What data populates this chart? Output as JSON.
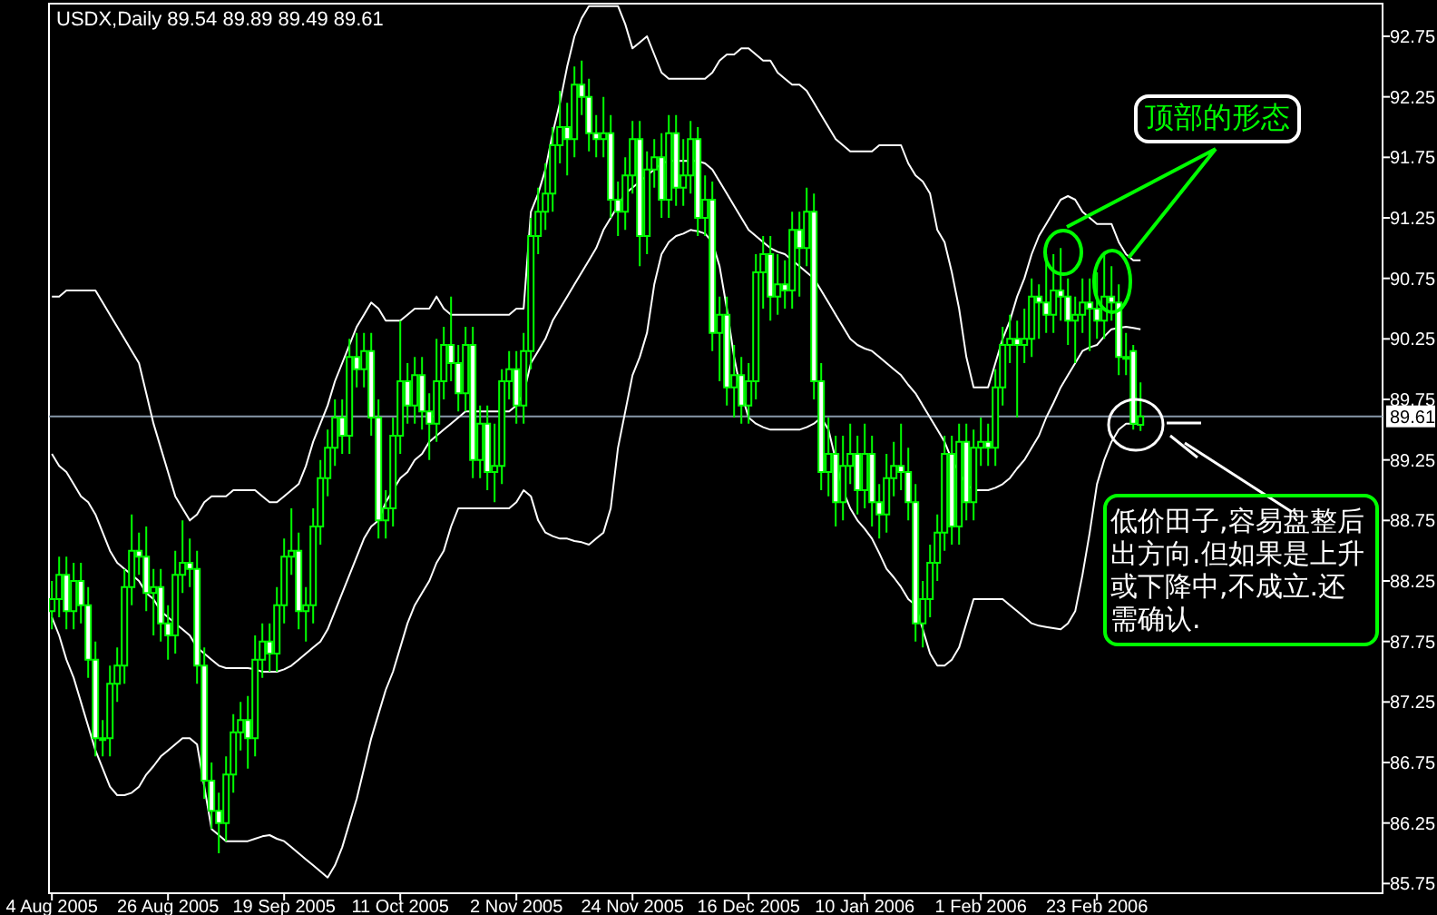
{
  "chart_data": {
    "type": "candlestick",
    "title": "USDX,Daily  89.54 89.89 89.49 89.61",
    "categories": [
      "4 Aug 2005",
      null,
      null,
      null,
      null,
      null,
      null,
      null,
      null,
      null,
      null,
      null,
      null,
      null,
      null,
      null,
      "26 Aug 2005",
      null,
      null,
      null,
      null,
      null,
      null,
      null,
      null,
      null,
      null,
      null,
      null,
      null,
      null,
      null,
      "19 Sep 2005",
      null,
      null,
      null,
      null,
      null,
      null,
      null,
      null,
      null,
      null,
      null,
      null,
      null,
      null,
      null,
      "11 Oct 2005",
      null,
      null,
      null,
      null,
      null,
      null,
      null,
      null,
      null,
      null,
      null,
      null,
      null,
      null,
      null,
      "2 Nov 2005",
      null,
      null,
      null,
      null,
      null,
      null,
      null,
      null,
      null,
      null,
      null,
      null,
      null,
      null,
      null,
      "24 Nov 2005",
      null,
      null,
      null,
      null,
      null,
      null,
      null,
      null,
      null,
      null,
      null,
      null,
      null,
      null,
      null,
      "16 Dec 2005",
      null,
      null,
      null,
      null,
      null,
      null,
      null,
      null,
      null,
      null,
      null,
      null,
      null,
      null,
      null,
      "10 Jan 2006",
      null,
      null,
      null,
      null,
      null,
      null,
      null,
      null,
      null,
      null,
      null,
      null,
      null,
      null,
      null,
      "1 Feb 2006",
      null,
      null,
      null,
      null,
      null,
      null,
      null,
      null,
      null,
      null,
      null,
      null,
      null,
      null,
      null,
      "23 Feb 2006",
      null,
      null,
      null,
      null,
      null,
      null
    ],
    "color": "#00ff00",
    "ohlc": [
      [
        88.0,
        88.25,
        87.85,
        88.1
      ],
      [
        88.1,
        88.45,
        87.95,
        88.3
      ],
      [
        88.3,
        88.45,
        87.85,
        88.0
      ],
      [
        88.0,
        88.4,
        87.85,
        88.25
      ],
      [
        88.25,
        88.4,
        87.9,
        88.05
      ],
      [
        88.05,
        88.2,
        87.45,
        87.6
      ],
      [
        87.6,
        87.75,
        86.8,
        86.95
      ],
      [
        86.95,
        87.1,
        86.8,
        86.95
      ],
      [
        86.95,
        87.55,
        86.8,
        87.4
      ],
      [
        87.4,
        87.7,
        87.25,
        87.55
      ],
      [
        87.55,
        88.35,
        87.4,
        88.2
      ],
      [
        88.2,
        88.8,
        88.05,
        88.5
      ],
      [
        88.5,
        88.65,
        88.3,
        88.45
      ],
      [
        88.45,
        88.7,
        88.0,
        88.15
      ],
      [
        88.15,
        88.35,
        87.8,
        88.2
      ],
      [
        88.2,
        88.35,
        87.75,
        87.9
      ],
      [
        87.9,
        88.05,
        87.6,
        87.8
      ],
      [
        87.8,
        88.5,
        87.65,
        88.3
      ],
      [
        88.3,
        88.75,
        88.15,
        88.4
      ],
      [
        88.4,
        88.6,
        88.2,
        88.35
      ],
      [
        88.35,
        88.5,
        87.4,
        87.55
      ],
      [
        87.55,
        87.7,
        86.45,
        86.6
      ],
      [
        86.6,
        86.75,
        86.2,
        86.35
      ],
      [
        86.35,
        86.5,
        86.0,
        86.25
      ],
      [
        86.25,
        86.8,
        86.1,
        86.65
      ],
      [
        86.65,
        87.15,
        86.5,
        87.0
      ],
      [
        87.0,
        87.25,
        86.85,
        87.1
      ],
      [
        87.1,
        87.3,
        86.7,
        86.95
      ],
      [
        86.95,
        87.8,
        86.8,
        87.6
      ],
      [
        87.6,
        87.9,
        87.45,
        87.75
      ],
      [
        87.75,
        87.9,
        87.5,
        87.65
      ],
      [
        87.65,
        88.2,
        87.5,
        88.05
      ],
      [
        88.05,
        88.6,
        87.9,
        88.45
      ],
      [
        88.45,
        88.85,
        88.3,
        88.5
      ],
      [
        88.5,
        88.65,
        87.85,
        88.0
      ],
      [
        88.0,
        88.2,
        87.75,
        88.05
      ],
      [
        88.05,
        88.85,
        87.9,
        88.7
      ],
      [
        88.7,
        89.25,
        88.55,
        89.1
      ],
      [
        89.1,
        89.5,
        88.95,
        89.35
      ],
      [
        89.35,
        89.75,
        89.2,
        89.6
      ],
      [
        89.6,
        89.75,
        89.3,
        89.45
      ],
      [
        89.45,
        90.25,
        89.3,
        90.1
      ],
      [
        90.1,
        90.3,
        89.85,
        90.0
      ],
      [
        90.0,
        90.3,
        89.85,
        90.15
      ],
      [
        90.15,
        90.3,
        89.45,
        89.6
      ],
      [
        89.6,
        89.75,
        88.6,
        88.75
      ],
      [
        88.75,
        89.0,
        88.6,
        88.85
      ],
      [
        88.85,
        89.6,
        88.7,
        89.45
      ],
      [
        89.45,
        90.4,
        89.3,
        89.9
      ],
      [
        89.9,
        90.05,
        89.55,
        89.7
      ],
      [
        89.7,
        90.1,
        89.55,
        89.95
      ],
      [
        89.95,
        90.1,
        89.5,
        89.65
      ],
      [
        89.65,
        89.8,
        89.25,
        89.55
      ],
      [
        89.55,
        90.25,
        89.4,
        89.9
      ],
      [
        89.9,
        90.35,
        89.75,
        90.2
      ],
      [
        90.2,
        90.6,
        89.9,
        90.05
      ],
      [
        90.05,
        90.2,
        89.65,
        89.8
      ],
      [
        89.8,
        90.35,
        89.65,
        90.2
      ],
      [
        90.2,
        90.35,
        89.1,
        89.25
      ],
      [
        89.25,
        89.7,
        89.1,
        89.55
      ],
      [
        89.55,
        89.7,
        89.0,
        89.15
      ],
      [
        89.15,
        89.55,
        88.9,
        89.2
      ],
      [
        89.2,
        90.0,
        89.05,
        89.9
      ],
      [
        89.9,
        90.15,
        89.75,
        90.0
      ],
      [
        90.0,
        90.15,
        89.55,
        89.7
      ],
      [
        89.7,
        90.3,
        89.55,
        90.15
      ],
      [
        90.15,
        91.25,
        90.0,
        91.1
      ],
      [
        91.1,
        91.5,
        90.95,
        91.3
      ],
      [
        91.3,
        91.7,
        91.15,
        91.45
      ],
      [
        91.45,
        92.0,
        91.3,
        91.85
      ],
      [
        91.85,
        92.3,
        91.7,
        92.0
      ],
      [
        92.0,
        92.2,
        91.6,
        91.9
      ],
      [
        91.9,
        92.5,
        91.75,
        92.35
      ],
      [
        92.35,
        92.55,
        92.1,
        92.25
      ],
      [
        92.25,
        92.4,
        91.8,
        91.95
      ],
      [
        91.95,
        92.1,
        91.75,
        91.9
      ],
      [
        91.9,
        92.25,
        91.75,
        91.95
      ],
      [
        91.95,
        92.1,
        91.25,
        91.4
      ],
      [
        91.4,
        91.55,
        91.1,
        91.3
      ],
      [
        91.3,
        91.75,
        91.15,
        91.6
      ],
      [
        91.6,
        92.05,
        91.45,
        91.9
      ],
      [
        91.9,
        92.05,
        90.85,
        91.1
      ],
      [
        91.1,
        91.8,
        90.95,
        91.65
      ],
      [
        91.65,
        91.9,
        91.5,
        91.75
      ],
      [
        91.75,
        91.95,
        91.25,
        91.4
      ],
      [
        91.4,
        92.1,
        91.25,
        91.95
      ],
      [
        91.95,
        92.1,
        91.35,
        91.5
      ],
      [
        91.5,
        91.9,
        91.35,
        91.6
      ],
      [
        91.6,
        92.05,
        91.45,
        91.9
      ],
      [
        91.9,
        92.0,
        91.1,
        91.25
      ],
      [
        91.25,
        91.6,
        91.1,
        91.4
      ],
      [
        91.4,
        91.55,
        90.15,
        90.3
      ],
      [
        90.3,
        90.6,
        89.9,
        90.45
      ],
      [
        90.45,
        90.6,
        89.7,
        89.85
      ],
      [
        89.85,
        90.2,
        89.6,
        89.95
      ],
      [
        89.95,
        90.1,
        89.55,
        89.7
      ],
      [
        89.7,
        90.05,
        89.55,
        89.9
      ],
      [
        89.9,
        90.95,
        89.75,
        90.8
      ],
      [
        90.8,
        91.1,
        90.5,
        90.95
      ],
      [
        90.95,
        91.1,
        90.4,
        90.6
      ],
      [
        90.6,
        90.95,
        90.45,
        90.7
      ],
      [
        90.7,
        90.9,
        90.5,
        90.65
      ],
      [
        90.65,
        91.3,
        90.5,
        91.15
      ],
      [
        91.15,
        91.3,
        90.6,
        91.0
      ],
      [
        91.0,
        91.5,
        90.85,
        91.3
      ],
      [
        91.3,
        91.45,
        89.75,
        89.9
      ],
      [
        89.9,
        90.05,
        89.0,
        89.15
      ],
      [
        89.15,
        89.6,
        88.95,
        89.3
      ],
      [
        89.3,
        89.45,
        88.7,
        88.9
      ],
      [
        88.9,
        89.45,
        88.75,
        89.2
      ],
      [
        89.2,
        89.55,
        89.05,
        89.3
      ],
      [
        89.3,
        89.45,
        88.8,
        89.0
      ],
      [
        89.0,
        89.55,
        88.85,
        89.3
      ],
      [
        89.3,
        89.45,
        88.7,
        88.9
      ],
      [
        88.9,
        89.05,
        88.6,
        88.8
      ],
      [
        88.8,
        89.3,
        88.65,
        89.1
      ],
      [
        89.1,
        89.4,
        88.95,
        89.2
      ],
      [
        89.2,
        89.55,
        89.0,
        89.15
      ],
      [
        89.15,
        89.35,
        88.75,
        88.9
      ],
      [
        88.9,
        89.05,
        87.75,
        87.9
      ],
      [
        87.9,
        88.25,
        87.7,
        88.1
      ],
      [
        88.1,
        88.55,
        87.95,
        88.4
      ],
      [
        88.4,
        88.8,
        88.25,
        88.65
      ],
      [
        88.65,
        89.45,
        88.5,
        89.3
      ],
      [
        89.3,
        89.45,
        88.55,
        88.7
      ],
      [
        88.7,
        89.55,
        88.55,
        89.4
      ],
      [
        89.4,
        89.55,
        88.75,
        88.9
      ],
      [
        88.9,
        89.5,
        88.75,
        89.35
      ],
      [
        89.35,
        89.6,
        89.2,
        89.4
      ],
      [
        89.4,
        89.55,
        89.2,
        89.35
      ],
      [
        89.35,
        90.0,
        89.2,
        89.85
      ],
      [
        89.85,
        90.35,
        89.7,
        90.2
      ],
      [
        90.2,
        90.45,
        90.05,
        90.25
      ],
      [
        90.25,
        90.4,
        89.6,
        90.2
      ],
      [
        90.2,
        90.5,
        90.05,
        90.25
      ],
      [
        90.25,
        90.75,
        90.1,
        90.6
      ],
      [
        90.6,
        90.7,
        90.25,
        90.55
      ],
      [
        90.55,
        90.95,
        90.3,
        90.45
      ],
      [
        90.45,
        90.95,
        90.3,
        90.65
      ],
      [
        90.65,
        91.0,
        90.4,
        90.6
      ],
      [
        90.6,
        90.75,
        90.2,
        90.4
      ],
      [
        90.4,
        90.6,
        90.05,
        90.45
      ],
      [
        90.45,
        90.75,
        90.3,
        90.55
      ],
      [
        90.55,
        90.75,
        90.15,
        90.5
      ],
      [
        90.5,
        90.8,
        90.25,
        90.4
      ],
      [
        90.4,
        90.95,
        90.25,
        90.6
      ],
      [
        90.6,
        90.85,
        90.4,
        90.55
      ],
      [
        90.55,
        90.7,
        89.95,
        90.1
      ],
      [
        90.1,
        90.3,
        89.95,
        90.1
      ],
      [
        90.15,
        90.2,
        89.5,
        89.55
      ],
      [
        89.54,
        89.89,
        89.49,
        89.61
      ]
    ],
    "series": [
      {
        "type": "line",
        "color": "#ffffff",
        "values": [
          90.6,
          90.6,
          90.65,
          90.65,
          90.65,
          90.65,
          90.65,
          90.55,
          90.45,
          90.35,
          90.25,
          90.15,
          90.05,
          89.8,
          89.55,
          89.35,
          89.15,
          88.95,
          88.85,
          88.75,
          88.8,
          88.9,
          88.95,
          88.95,
          88.95,
          89.0,
          89.0,
          89.0,
          89.0,
          88.95,
          88.9,
          88.9,
          88.95,
          89.0,
          89.05,
          89.2,
          89.4,
          89.55,
          89.7,
          89.9,
          90.05,
          90.2,
          90.35,
          90.45,
          90.55,
          90.5,
          90.4,
          90.4,
          90.4,
          90.45,
          90.5,
          90.5,
          90.5,
          90.6,
          90.5,
          90.45,
          90.45,
          90.45,
          90.45,
          90.45,
          90.45,
          90.45,
          90.45,
          90.45,
          90.5,
          90.5,
          91.3,
          91.45,
          91.65,
          91.95,
          92.2,
          92.5,
          92.75,
          92.9,
          93.0,
          93.0,
          93.0,
          93.0,
          93.0,
          92.85,
          92.65,
          92.7,
          92.75,
          92.6,
          92.45,
          92.4,
          92.4,
          92.4,
          92.4,
          92.4,
          92.4,
          92.45,
          92.55,
          92.6,
          92.6,
          92.65,
          92.65,
          92.6,
          92.55,
          92.55,
          92.45,
          92.4,
          92.35,
          92.35,
          92.3,
          92.2,
          92.1,
          92.0,
          91.9,
          91.85,
          91.8,
          91.8,
          91.8,
          91.8,
          91.85,
          91.85,
          91.85,
          91.85,
          91.7,
          91.6,
          91.55,
          91.45,
          91.15,
          91.05,
          90.8,
          90.5,
          90.1,
          89.85,
          89.85,
          89.85,
          90.05,
          90.25,
          90.4,
          90.6,
          90.75,
          90.95,
          91.1,
          91.2,
          91.3,
          91.4,
          91.43,
          91.4,
          91.3,
          91.25,
          91.2,
          91.2,
          91.2,
          91.05,
          90.95,
          90.9,
          90.9
        ]
      },
      {
        "type": "line",
        "color": "#ffffff",
        "values": [
          89.3,
          89.2,
          89.15,
          89.05,
          88.95,
          88.9,
          88.8,
          88.65,
          88.5,
          88.4,
          88.35,
          88.3,
          88.25,
          88.15,
          88.1,
          88.0,
          87.95,
          87.9,
          87.85,
          87.8,
          87.7,
          87.65,
          87.6,
          87.55,
          87.53,
          87.53,
          87.53,
          87.53,
          87.52,
          87.5,
          87.5,
          87.5,
          87.52,
          87.55,
          87.6,
          87.65,
          87.7,
          87.75,
          87.85,
          88.0,
          88.15,
          88.3,
          88.45,
          88.6,
          88.7,
          88.75,
          88.9,
          89.0,
          89.1,
          89.15,
          89.25,
          89.3,
          89.4,
          89.45,
          89.5,
          89.55,
          89.6,
          89.65,
          89.65,
          89.65,
          89.65,
          89.65,
          89.65,
          89.65,
          89.7,
          89.8,
          90.05,
          90.15,
          90.25,
          90.4,
          90.5,
          90.6,
          90.7,
          90.8,
          90.9,
          91.0,
          91.15,
          91.25,
          91.35,
          91.45,
          91.5,
          91.55,
          91.6,
          91.65,
          91.7,
          91.72,
          91.72,
          91.72,
          91.72,
          91.72,
          91.7,
          91.65,
          91.55,
          91.45,
          91.35,
          91.25,
          91.15,
          91.1,
          91.05,
          91.0,
          90.97,
          90.95,
          90.9,
          90.85,
          90.8,
          90.75,
          90.65,
          90.55,
          90.45,
          90.35,
          90.25,
          90.2,
          90.17,
          90.15,
          90.1,
          90.05,
          90.0,
          89.95,
          89.87,
          89.8,
          89.7,
          89.6,
          89.5,
          89.4,
          89.25,
          89.15,
          89.05,
          89.0,
          89.0,
          89.0,
          89.02,
          89.05,
          89.1,
          89.18,
          89.25,
          89.35,
          89.45,
          89.6,
          89.72,
          89.85,
          89.95,
          90.05,
          90.15,
          90.18,
          90.2,
          90.27,
          90.33,
          90.34,
          90.35,
          90.34,
          90.33
        ]
      },
      {
        "type": "line",
        "color": "#ffffff",
        "values": [
          87.95,
          87.8,
          87.6,
          87.45,
          87.25,
          87.05,
          86.85,
          86.7,
          86.55,
          86.48,
          86.48,
          86.5,
          86.55,
          86.65,
          86.72,
          86.8,
          86.85,
          86.9,
          86.95,
          86.95,
          86.9,
          86.55,
          86.2,
          86.15,
          86.1,
          86.1,
          86.1,
          86.1,
          86.12,
          86.14,
          86.15,
          86.12,
          86.1,
          86.05,
          86.0,
          85.95,
          85.9,
          85.85,
          85.8,
          85.9,
          86.05,
          86.25,
          86.45,
          86.7,
          86.95,
          87.15,
          87.35,
          87.5,
          87.7,
          87.9,
          88.05,
          88.15,
          88.25,
          88.4,
          88.5,
          88.7,
          88.85,
          88.85,
          88.85,
          88.85,
          88.85,
          88.85,
          88.85,
          88.85,
          88.9,
          89.0,
          88.95,
          88.75,
          88.65,
          88.62,
          88.6,
          88.6,
          88.58,
          88.57,
          88.55,
          88.6,
          88.65,
          88.85,
          89.35,
          89.65,
          89.95,
          90.1,
          90.3,
          90.7,
          90.95,
          91.05,
          91.1,
          91.12,
          91.15,
          91.14,
          91.12,
          91.05,
          90.85,
          90.5,
          90.1,
          89.8,
          89.6,
          89.55,
          89.52,
          89.5,
          89.5,
          89.5,
          89.5,
          89.5,
          89.52,
          89.55,
          89.6,
          89.5,
          89.25,
          89.0,
          88.85,
          88.75,
          88.68,
          88.6,
          88.48,
          88.35,
          88.28,
          88.2,
          88.1,
          88.05,
          87.85,
          87.65,
          87.55,
          87.55,
          87.6,
          87.7,
          87.9,
          88.1,
          88.1,
          88.1,
          88.1,
          88.1,
          88.05,
          88.0,
          87.95,
          87.9,
          87.88,
          87.87,
          87.86,
          87.85,
          87.9,
          88.0,
          88.3,
          88.65,
          89.05,
          89.25,
          89.4,
          89.5,
          89.55,
          89.55,
          89.55
        ]
      }
    ],
    "ylim": [
      85.67,
      93.02
    ],
    "yticks": [
      85.75,
      86.25,
      86.75,
      87.25,
      87.75,
      88.25,
      88.75,
      89.25,
      89.75,
      90.25,
      90.75,
      91.25,
      91.75,
      92.25,
      92.75
    ],
    "ref_lines": [
      {
        "axis": "y",
        "value": 89.61,
        "label": "89.61",
        "color": "#8899aa"
      }
    ],
    "annotations": [
      "顶部的形态",
      "低价田子,容易盘整后出方向.但如果是上升或下降中,不成立.还需确认."
    ]
  }
}
